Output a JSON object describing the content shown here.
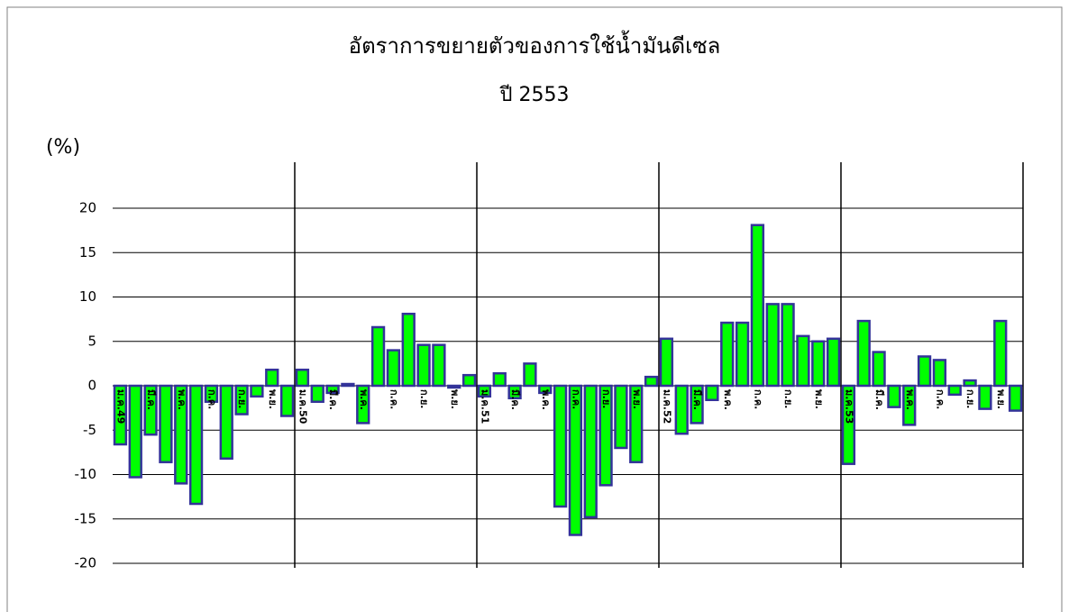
{
  "chart_data": {
    "type": "bar",
    "title": "อัตราการขยายตัวของการใช้น้ำมันดีเซล",
    "subtitle": "ปี 2553",
    "y_label": "(%)",
    "categories": [
      "ม.ค.49",
      null,
      "มี.ค.",
      null,
      "พ.ค.",
      null,
      "ก.ค.",
      null,
      "ก.ย.",
      null,
      "พ.ย.",
      null,
      "ม.ค.50",
      null,
      "มี.ค.",
      null,
      "พ.ค.",
      null,
      "ก.ค.",
      null,
      "ก.ย.",
      null,
      "พ.ย.",
      null,
      "ม.ค.51",
      null,
      "มี.ค.",
      null,
      "พ.ค.",
      null,
      "ก.ค.",
      null,
      "ก.ย.",
      null,
      "พ.ย.",
      null,
      "ม.ค.52",
      null,
      "มี.ค.",
      null,
      "พ.ค.",
      null,
      "ก.ค.",
      null,
      "ก.ย.",
      null,
      "พ.ย.",
      null,
      "ม.ค.53",
      null,
      "มี.ค.",
      null,
      "พ.ค.",
      null,
      "ก.ค.",
      null,
      "ก.ย.",
      null,
      "พ.ย.",
      null
    ],
    "values": [
      -6.6,
      -10.3,
      -5.5,
      -8.6,
      -11,
      -13.3,
      -1.8,
      -8.2,
      -3.2,
      -1.2,
      1.8,
      -3.4,
      1.8,
      -1.8,
      -0.8,
      0.2,
      -4.2,
      6.6,
      4,
      8.1,
      4.6,
      4.6,
      -0.2,
      1.2,
      -1.2,
      1.4,
      -1.4,
      2.5,
      -0.8,
      -13.6,
      -16.8,
      -14.8,
      -11.2,
      -7,
      -8.6,
      1,
      5.3,
      -5.4,
      -4.2,
      -1.6,
      7.1,
      7.1,
      18.1,
      9.2,
      9.2,
      5.6,
      5,
      5.3,
      -8.8,
      7.3,
      3.8,
      -2.4,
      -4.4,
      3.3,
      2.9,
      -1,
      0.6,
      -2.6,
      7.3,
      -2.8
    ],
    "color": "#00ff00",
    "edge_color": "#333399",
    "ylim": [
      -20,
      20
    ],
    "yticks": [
      -20,
      -15,
      -10,
      -5,
      0,
      5,
      10,
      15,
      20
    ],
    "grid": true
  }
}
